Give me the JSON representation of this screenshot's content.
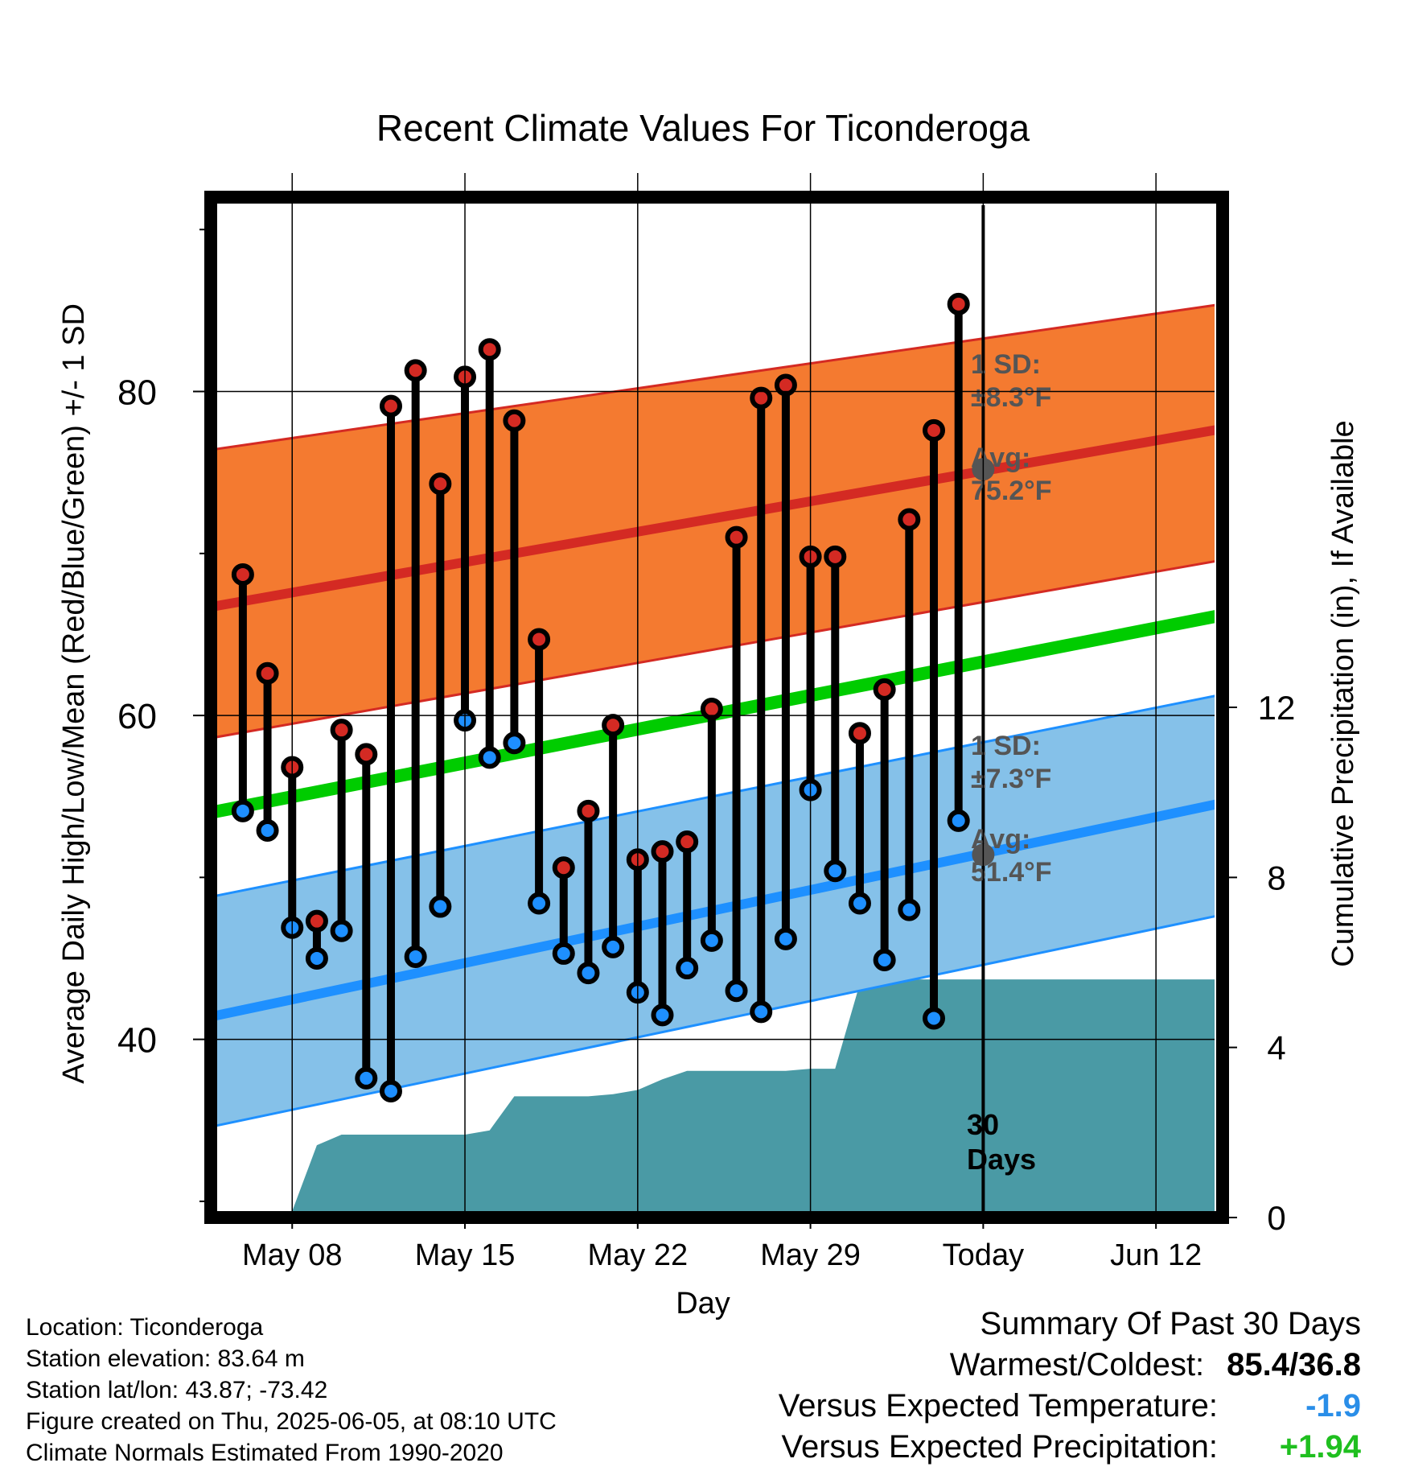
{
  "chart_data": {
    "type": "line",
    "title": "Recent Climate Values For Ticonderoga",
    "xlabel": "Day",
    "ylabel_left": "Average Daily High/Low/Mean (Red/Blue/Green) +/- 1 SD",
    "ylabel_right": "Cumulative Precipitation (in), If Available",
    "x_tick_labels": [
      "May 08",
      "May 15",
      "May 22",
      "May 29",
      "Today",
      "Jun 12"
    ],
    "x_tick_days": [
      8,
      15,
      22,
      29,
      36,
      43
    ],
    "xlim_days": [
      4.7,
      45.7
    ],
    "today_day": 36,
    "today_label": [
      "30",
      "Days"
    ],
    "ylim_left": [
      29,
      92
    ],
    "yticks_left": [
      40,
      60,
      80
    ],
    "ylim_right": [
      0,
      24
    ],
    "yticks_right": [
      0,
      4,
      8,
      12
    ],
    "normals": {
      "high_avg": {
        "start": 66.7,
        "end": 77.7
      },
      "high_sd_lower": {
        "start": 58.6,
        "end": 69.6
      },
      "high_sd_upper": {
        "start": 76.4,
        "end": 85.4
      },
      "mean_avg": {
        "start": 54.0,
        "end": 66.2
      },
      "low_avg": {
        "start": 41.4,
        "end": 54.6
      },
      "low_sd_lower": {
        "start": 34.6,
        "end": 47.7
      },
      "low_sd_upper": {
        "start": 48.8,
        "end": 61.3
      }
    },
    "annotations": {
      "high": {
        "line1": "1 SD:",
        "line2": "±8.3°F",
        "line3": "Avg:",
        "line4": "75.2°F",
        "avg_value": 75.2
      },
      "low": {
        "line1": "1 SD:",
        "line2": "±7.3°F",
        "line3": "Avg:",
        "line4": "51.4°F",
        "avg_value": 51.4
      }
    },
    "daily": {
      "days": [
        6,
        7,
        8,
        9,
        10,
        11,
        12,
        13,
        14,
        15,
        16,
        17,
        18,
        19,
        20,
        21,
        22,
        23,
        24,
        25,
        26,
        27,
        28,
        29,
        30,
        31,
        32,
        33,
        34,
        35
      ],
      "high": [
        68.7,
        62.6,
        56.8,
        47.3,
        59.1,
        57.6,
        79.1,
        81.3,
        74.3,
        80.9,
        82.6,
        78.2,
        64.7,
        50.6,
        54.1,
        59.4,
        51.1,
        51.6,
        52.2,
        60.4,
        71.0,
        79.6,
        80.4,
        69.8,
        69.8,
        58.9,
        61.6,
        72.1,
        77.6,
        85.4
      ],
      "low": [
        54.1,
        52.9,
        46.9,
        45.0,
        46.7,
        37.6,
        36.8,
        45.1,
        48.2,
        59.7,
        57.4,
        58.3,
        48.4,
        45.3,
        44.1,
        45.7,
        42.9,
        41.5,
        44.4,
        46.1,
        43.0,
        41.7,
        46.2,
        55.4,
        50.4,
        48.4,
        44.9,
        48.0,
        41.3,
        53.5
      ]
    },
    "precip_cumulative": {
      "days": [
        5.5,
        6,
        7,
        8,
        9,
        10,
        11,
        12,
        13,
        14,
        15,
        16,
        17,
        18,
        19,
        20,
        21,
        22,
        23,
        24,
        25,
        26,
        27,
        28,
        29,
        30,
        31,
        31.5,
        32,
        33,
        34,
        35,
        36,
        37,
        38,
        39,
        40,
        41,
        42,
        43,
        44,
        45.5
      ],
      "values": [
        0,
        0.1,
        0.15,
        0.15,
        1.7,
        1.95,
        1.95,
        1.95,
        1.95,
        1.95,
        1.95,
        2.05,
        2.85,
        2.85,
        2.85,
        2.85,
        2.9,
        3,
        3.25,
        3.45,
        3.45,
        3.45,
        3.45,
        3.45,
        3.5,
        3.5,
        5.5,
        5.6,
        5.6,
        5.6,
        5.6,
        5.6,
        5.6,
        5.6,
        5.6,
        5.6,
        5.6,
        5.6,
        5.6,
        5.6,
        5.6,
        5.6
      ]
    }
  },
  "station_info": {
    "location": "Location: Ticonderoga",
    "elevation": "Station elevation: 83.64 m",
    "latlon": "Station lat/lon: 43.87; -73.42",
    "created": "Figure created on Thu, 2025-06-05, at 08:10 UTC",
    "normals": "Climate Normals Estimated From 1990-2020"
  },
  "summary": {
    "heading": "Summary Of Past 30 Days",
    "warmest_coldest_label": "Warmest/Coldest:",
    "warmest_coldest_value": "85.4/36.8",
    "temp_label": "Versus Expected Temperature:",
    "temp_value": "-1.9",
    "precip_label": "Versus Expected Precipitation:",
    "precip_value": "+1.94"
  },
  "colors": {
    "high_band": "#f47a30",
    "high_avg": "#d42a23",
    "low_band": "#85c1e9",
    "low_avg": "#1e90ff",
    "mean": "#00cc00",
    "precip": "#4a9aa5",
    "high_marker": "#d42a23",
    "low_marker": "#1e8fff",
    "avg_marker": "#555555",
    "annotation_text": "#555555"
  }
}
